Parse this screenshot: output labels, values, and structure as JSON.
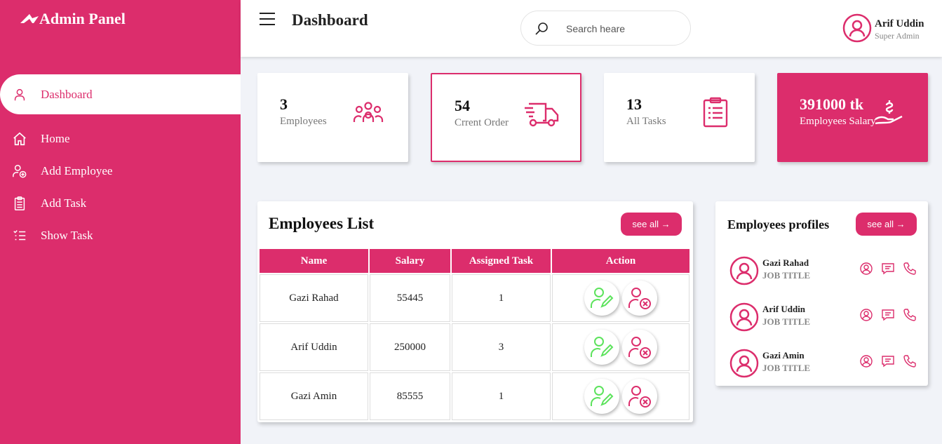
{
  "brand": {
    "title": "Admin Panel"
  },
  "sidebar": {
    "items": [
      {
        "label": "Dashboard",
        "icon": "user-icon"
      },
      {
        "label": "Home",
        "icon": "home-icon"
      },
      {
        "label": "Add Employee",
        "icon": "user-plus-icon"
      },
      {
        "label": "Add Task",
        "icon": "clipboard-icon"
      },
      {
        "label": "Show Task",
        "icon": "checklist-icon"
      }
    ]
  },
  "header": {
    "title": "Dashboard",
    "search_placeholder": "Search heare",
    "user_name": "Arif Uddin",
    "user_role": "Super Admin"
  },
  "stats": [
    {
      "value": "3",
      "label": "Employees",
      "icon": "group-icon"
    },
    {
      "value": "54",
      "label": "Crrent Order",
      "icon": "truck-icon"
    },
    {
      "value": "13",
      "label": "All Tasks",
      "icon": "clipboard-list-icon"
    },
    {
      "value": "391000 tk",
      "label": "Employees Salary",
      "icon": "salary-hand-icon"
    }
  ],
  "employees": {
    "title": "Employees List",
    "see_all": "see all →",
    "columns": [
      "Name",
      "Salary",
      "Assigned Task",
      "Action"
    ],
    "rows": [
      {
        "name": "Gazi Rahad",
        "salary": "55445",
        "tasks": "1"
      },
      {
        "name": "Arif Uddin",
        "salary": "250000",
        "tasks": "3"
      },
      {
        "name": "Gazi Amin",
        "salary": "85555",
        "tasks": "1"
      }
    ]
  },
  "profiles": {
    "title": "Employees profiles",
    "see_all": "see all →",
    "items": [
      {
        "name": "Gazi Rahad",
        "job": "JOB TITLE"
      },
      {
        "name": "Arif Uddin",
        "job": "JOB TITLE"
      },
      {
        "name": "Gazi Amin",
        "job": "JOB TITLE"
      }
    ]
  },
  "colors": {
    "accent": "#dc2d6c",
    "edit": "#5ce35c",
    "background": "#f1f3f8"
  }
}
